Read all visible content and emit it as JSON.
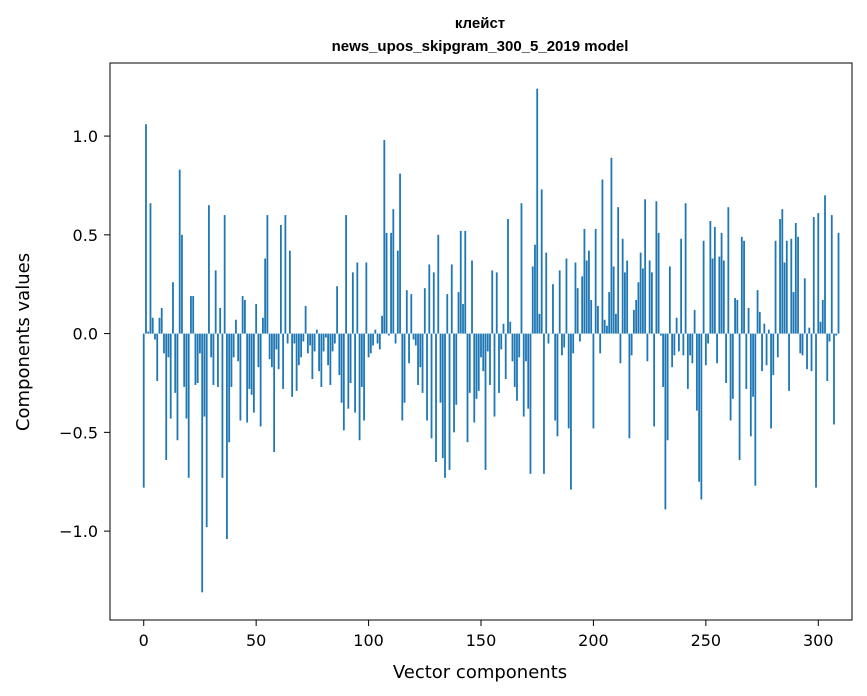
{
  "chart_data": {
    "type": "bar",
    "title": "клейст",
    "subtitle": "news_upos_skipgram_300_5_2019 model",
    "xlabel": "Vector components",
    "ylabel": "Components values",
    "xlim": [
      -15,
      315
    ],
    "ylim": [
      -1.45,
      1.37
    ],
    "xticks": [
      0,
      50,
      100,
      150,
      200,
      250,
      300
    ],
    "xtick_labels": [
      "0",
      "50",
      "100",
      "150",
      "200",
      "250",
      "300"
    ],
    "yticks": [
      -1.0,
      -0.5,
      0.0,
      0.5,
      1.0
    ],
    "ytick_labels": [
      "−1.0",
      "−0.5",
      "0.0",
      "0.5",
      "1.0"
    ],
    "grid": false,
    "bar_color": "#1f77b4",
    "values": [
      -0.78,
      1.06,
      0.01,
      0.66,
      0.08,
      -0.03,
      -0.24,
      0.08,
      0.13,
      -0.1,
      -0.64,
      -0.12,
      -0.43,
      0.26,
      -0.3,
      -0.54,
      0.83,
      0.5,
      -0.27,
      -0.43,
      -0.73,
      0.19,
      0.19,
      -0.26,
      -0.25,
      -0.1,
      -1.31,
      -0.42,
      -0.98,
      0.65,
      -0.12,
      -0.26,
      0.32,
      -0.27,
      0.13,
      -0.73,
      0.6,
      -1.04,
      -0.55,
      -0.27,
      -0.12,
      0.07,
      -0.14,
      -0.44,
      0.19,
      0.17,
      -0.45,
      -0.28,
      -0.31,
      -0.4,
      0.15,
      -0.17,
      -0.47,
      0.08,
      0.38,
      0.6,
      -0.13,
      -0.17,
      -0.6,
      -0.08,
      -0.18,
      0.55,
      -0.28,
      0.6,
      -0.05,
      0.42,
      -0.32,
      -0.05,
      -0.29,
      -0.16,
      -0.12,
      -0.04,
      0.14,
      -0.1,
      -0.06,
      -0.23,
      -0.09,
      0.02,
      -0.19,
      -0.27,
      -0.09,
      -0.02,
      -0.16,
      -0.26,
      -0.09,
      -0.05,
      0.24,
      -0.21,
      -0.35,
      -0.49,
      0.6,
      -0.38,
      -0.25,
      0.31,
      -0.4,
      0.36,
      -0.54,
      -0.27,
      -0.44,
      0.36,
      -0.12,
      -0.1,
      -0.06,
      0.02,
      -0.05,
      -0.08,
      0.09,
      0.98,
      0.51,
      -0.01,
      0.51,
      0.63,
      -0.05,
      0.42,
      0.81,
      -0.44,
      -0.35,
      0.22,
      -0.15,
      0.2,
      -0.03,
      -0.06,
      -0.26,
      -0.17,
      -0.3,
      0.23,
      -0.44,
      0.35,
      -0.53,
      0.31,
      -0.65,
      0.5,
      -0.35,
      -0.63,
      -0.73,
      0.2,
      -0.69,
      0.35,
      -0.5,
      -0.36,
      0.21,
      0.52,
      0.15,
      0.52,
      -0.55,
      -0.3,
      0.37,
      -0.45,
      -0.33,
      -0.29,
      -0.12,
      -0.19,
      -0.69,
      -0.09,
      -0.26,
      0.32,
      -0.42,
      0.31,
      -0.3,
      -0.08,
      0.05,
      -0.23,
      0.58,
      0.06,
      -0.14,
      -0.27,
      -0.34,
      -0.12,
      0.66,
      -0.42,
      -0.14,
      -0.38,
      -0.71,
      0.34,
      0.45,
      1.24,
      0.1,
      0.73,
      -0.71,
      0.41,
      -0.05,
      0.0,
      0.25,
      -0.44,
      -0.52,
      0.32,
      -0.11,
      -0.07,
      0.38,
      -0.48,
      -0.79,
      -0.1,
      0.36,
      0.23,
      -0.04,
      0.29,
      0.53,
      0.37,
      0.42,
      0.17,
      -0.48,
      0.53,
      0.14,
      -0.1,
      0.78,
      0.07,
      0.04,
      0.21,
      0.89,
      0.34,
      0.1,
      0.64,
      -0.15,
      0.48,
      0.31,
      0.37,
      -0.53,
      -0.11,
      0.12,
      0.17,
      0.26,
      0.41,
      0.33,
      0.68,
      -0.14,
      0.37,
      0.31,
      -0.47,
      0.67,
      0.51,
      -0.01,
      -0.27,
      -0.89,
      -0.54,
      0.34,
      -0.17,
      -0.11,
      0.08,
      -0.09,
      0.48,
      -0.11,
      0.66,
      -0.28,
      -0.11,
      -0.15,
      0.12,
      -0.39,
      -0.75,
      -0.84,
      0.47,
      -0.16,
      -0.05,
      0.57,
      0.38,
      0.54,
      -0.15,
      0.39,
      0.51,
      0.37,
      -0.25,
      0.64,
      -0.44,
      -0.33,
      0.18,
      0.17,
      -0.64,
      0.49,
      0.47,
      -0.28,
      0.13,
      -0.52,
      -0.32,
      -0.77,
      0.22,
      0.11,
      -0.19,
      0.05,
      -0.16,
      0.02,
      -0.48,
      -0.21,
      0.47,
      -0.12,
      0.58,
      0.63,
      0.36,
      0.47,
      -0.29,
      0.48,
      0.21,
      0.56,
      0.49,
      -0.1,
      -0.11,
      0.28,
      -0.18,
      0.03,
      -0.19,
      0.59,
      -0.78,
      0.61,
      0.06,
      0.17,
      0.7,
      -0.24,
      -0.04,
      0.6,
      -0.46,
      -0.01,
      0.51
    ]
  }
}
